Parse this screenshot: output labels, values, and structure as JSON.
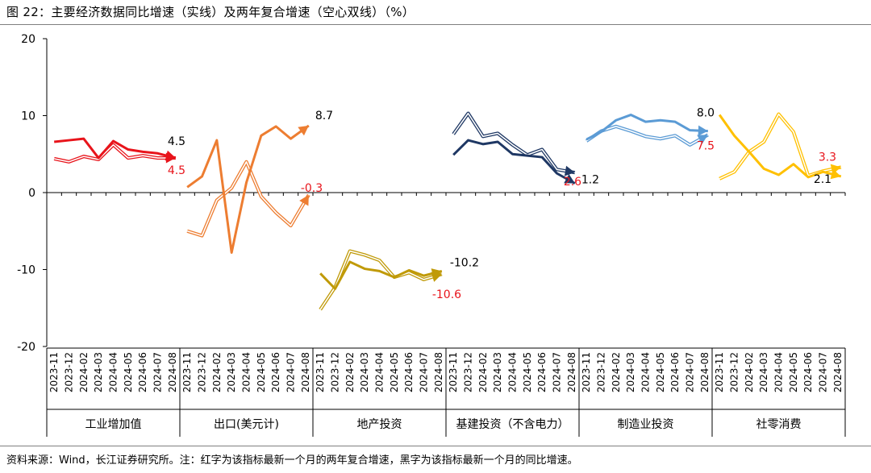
{
  "figure": {
    "title": "图 22：主要经济数据同比增速（实线）及两年复合增速（空心双线）（%）",
    "source": "资料来源：Wind，长江证券研究所。注：红字为该指标最新一个月的两年复合增速，黑字为该指标最新一个月的同比增速。"
  },
  "colors": {
    "工业增加值": "#e8141b",
    "出口(美元计)": "#ed7d31",
    "地产投资": "#c09a08",
    "基建投资（不含电力）": "#1f3864",
    "制造业投资": "#5b9bd5",
    "社零消费": "#ffc000",
    "label_red": "#e8141b",
    "label_black": "#000000",
    "axis": "#000000"
  },
  "chart_data": {
    "type": "line",
    "title": "图 22：主要经济数据同比增速（实线）及两年复合增速（空心双线）（%）",
    "xlabel": "",
    "ylabel": "",
    "ylim": [
      -20,
      20
    ],
    "yticks": [
      20,
      10,
      0,
      -10,
      -20
    ],
    "grid": false,
    "legend": "none",
    "months": [
      "2023-11",
      "2023-12",
      "2024-02",
      "2024-03",
      "2024-04",
      "2024-05",
      "2024-06",
      "2024-07",
      "2024-08"
    ],
    "groups": [
      {
        "name": "工业增加值",
        "yoy": [
          6.6,
          6.8,
          7.0,
          4.5,
          6.7,
          5.6,
          5.3,
          5.1,
          4.5
        ],
        "cagr2": [
          4.4,
          4.0,
          4.7,
          4.3,
          6.2,
          4.5,
          4.8,
          4.5,
          4.5
        ],
        "yoy_label": "4.5",
        "cagr2_label": "4.5"
      },
      {
        "name": "出口(美元计)",
        "yoy": [
          0.7,
          2.1,
          6.8,
          -7.8,
          1.3,
          7.4,
          8.6,
          7.0,
          8.7
        ],
        "cagr2": [
          -5.0,
          -5.6,
          -1.0,
          0.6,
          4.0,
          -0.5,
          -2.6,
          -4.3,
          -0.3
        ],
        "yoy_label": "8.7",
        "cagr2_label": "-0.3"
      },
      {
        "name": "地产投资",
        "yoy": [
          -10.5,
          -12.5,
          -9.0,
          -9.9,
          -10.2,
          -11.0,
          -10.1,
          -10.8,
          -10.2
        ],
        "cagr2": [
          -15.2,
          -12.3,
          -7.6,
          -8.1,
          -8.8,
          -11.0,
          -10.4,
          -11.3,
          -10.6
        ],
        "yoy_label": "-10.2",
        "cagr2_label": "-10.6"
      },
      {
        "name": "基建投资（不含电力）",
        "yoy": [
          4.9,
          6.8,
          6.3,
          6.6,
          5.0,
          4.8,
          4.6,
          2.5,
          1.2
        ],
        "cagr2": [
          7.6,
          10.3,
          7.3,
          7.7,
          6.2,
          4.9,
          5.6,
          3.0,
          2.6
        ],
        "yoy_label": "1.2",
        "cagr2_label": "2.6"
      },
      {
        "name": "制造业投资",
        "yoy": [
          6.9,
          7.9,
          9.4,
          10.1,
          9.2,
          9.4,
          9.2,
          8.1,
          8.0
        ],
        "cagr2": [
          6.7,
          8.0,
          8.6,
          8.0,
          7.3,
          7.0,
          7.4,
          6.2,
          7.5
        ],
        "yoy_label": "8.0",
        "cagr2_label": "7.5"
      },
      {
        "name": "社零消费",
        "yoy": [
          10.1,
          7.4,
          5.3,
          3.1,
          2.3,
          3.7,
          2.0,
          2.7,
          2.1
        ],
        "cagr2": [
          1.8,
          2.7,
          5.3,
          6.6,
          10.2,
          7.9,
          2.2,
          2.8,
          3.3
        ],
        "yoy_label": "2.1",
        "cagr2_label": "3.3"
      }
    ]
  }
}
